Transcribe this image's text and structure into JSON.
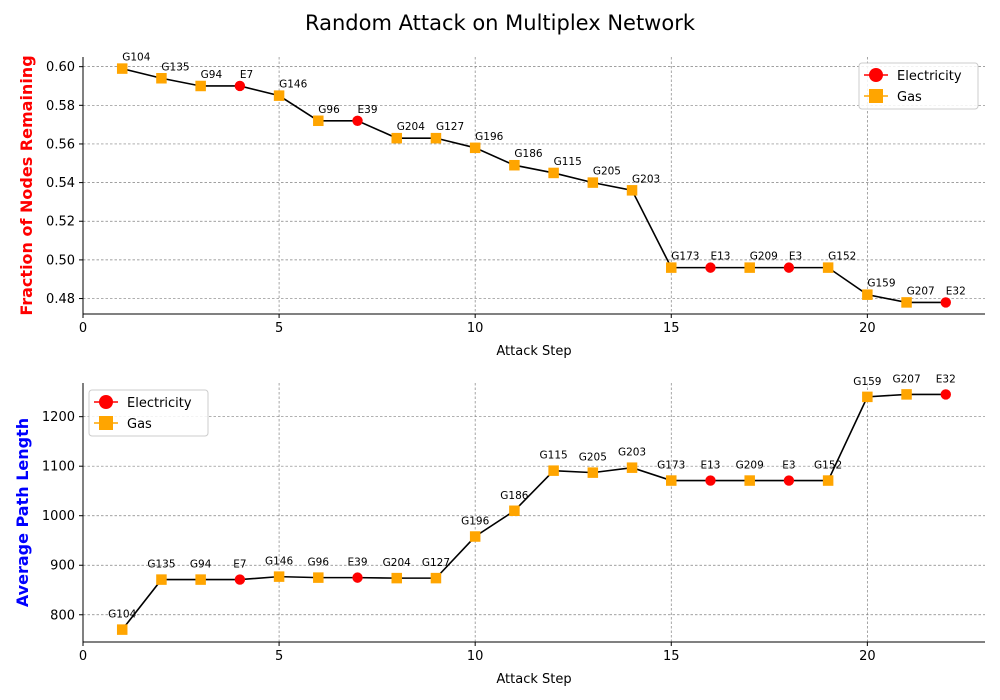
{
  "figure_title": "Random Attack on Multiplex Network",
  "colors": {
    "electricity": "#ff0000",
    "gas": "#ffa500",
    "line": "#000000",
    "grid": "#808080",
    "ylabel_top": "#ff0000",
    "ylabel_bottom": "#0000ff"
  },
  "legend": {
    "electricity_label": "Electricity",
    "gas_label": "Gas"
  },
  "chart_data": [
    {
      "type": "line",
      "title": "",
      "xlabel": "Attack Step",
      "ylabel": "Fraction of Nodes Remaining",
      "xlim": [
        0,
        23
      ],
      "ylim": [
        0.472,
        0.605
      ],
      "xticks": [
        0,
        5,
        10,
        15,
        20
      ],
      "yticks": [
        0.48,
        0.5,
        0.52,
        0.54,
        0.56,
        0.58,
        0.6
      ],
      "ytick_labels": [
        "0.48",
        "0.50",
        "0.52",
        "0.54",
        "0.56",
        "0.58",
        "0.60"
      ],
      "grid": true,
      "legend_position": "top-right",
      "x": [
        1,
        2,
        3,
        4,
        5,
        6,
        7,
        8,
        9,
        10,
        11,
        12,
        13,
        14,
        15,
        16,
        17,
        18,
        19,
        20,
        21,
        22
      ],
      "y": [
        0.599,
        0.594,
        0.59,
        0.59,
        0.585,
        0.572,
        0.572,
        0.563,
        0.563,
        0.558,
        0.549,
        0.545,
        0.54,
        0.536,
        0.496,
        0.496,
        0.496,
        0.496,
        0.496,
        0.482,
        0.478,
        0.478
      ],
      "node_labels": [
        "G104",
        "G135",
        "G94",
        "E7",
        "G146",
        "G96",
        "E39",
        "G204",
        "G127",
        "G196",
        "G186",
        "G115",
        "G205",
        "G203",
        "G173",
        "E13",
        "G209",
        "E3",
        "G152",
        "G159",
        "G207",
        "E32"
      ],
      "node_types": [
        "gas",
        "gas",
        "gas",
        "electricity",
        "gas",
        "gas",
        "electricity",
        "gas",
        "gas",
        "gas",
        "gas",
        "gas",
        "gas",
        "gas",
        "gas",
        "electricity",
        "gas",
        "electricity",
        "gas",
        "gas",
        "gas",
        "electricity"
      ]
    },
    {
      "type": "line",
      "title": "",
      "xlabel": "Attack Step",
      "ylabel": "Average Path Length",
      "xlim": [
        0,
        23
      ],
      "ylim": [
        745,
        1268
      ],
      "xticks": [
        0,
        5,
        10,
        15,
        20
      ],
      "yticks": [
        800,
        900,
        1000,
        1100,
        1200
      ],
      "ytick_labels": [
        "800",
        "900",
        "1000",
        "1100",
        "1200"
      ],
      "grid": true,
      "legend_position": "top-left",
      "x": [
        1,
        2,
        3,
        4,
        5,
        6,
        7,
        8,
        9,
        10,
        11,
        12,
        13,
        14,
        15,
        16,
        17,
        18,
        19,
        20,
        21,
        22
      ],
      "y": [
        770,
        871,
        871,
        871,
        877,
        875,
        875,
        874,
        874,
        958,
        1010,
        1091,
        1087,
        1097,
        1071,
        1071,
        1071,
        1071,
        1071,
        1240,
        1245,
        1245
      ],
      "node_labels": [
        "G104",
        "G135",
        "G94",
        "E7",
        "G146",
        "G96",
        "E39",
        "G204",
        "G127",
        "G196",
        "G186",
        "G115",
        "G205",
        "G203",
        "G173",
        "E13",
        "G209",
        "E3",
        "G152",
        "G159",
        "G207",
        "E32"
      ],
      "node_types": [
        "gas",
        "gas",
        "gas",
        "electricity",
        "gas",
        "gas",
        "electricity",
        "gas",
        "gas",
        "gas",
        "gas",
        "gas",
        "gas",
        "gas",
        "gas",
        "electricity",
        "gas",
        "electricity",
        "gas",
        "gas",
        "gas",
        "electricity"
      ]
    }
  ]
}
